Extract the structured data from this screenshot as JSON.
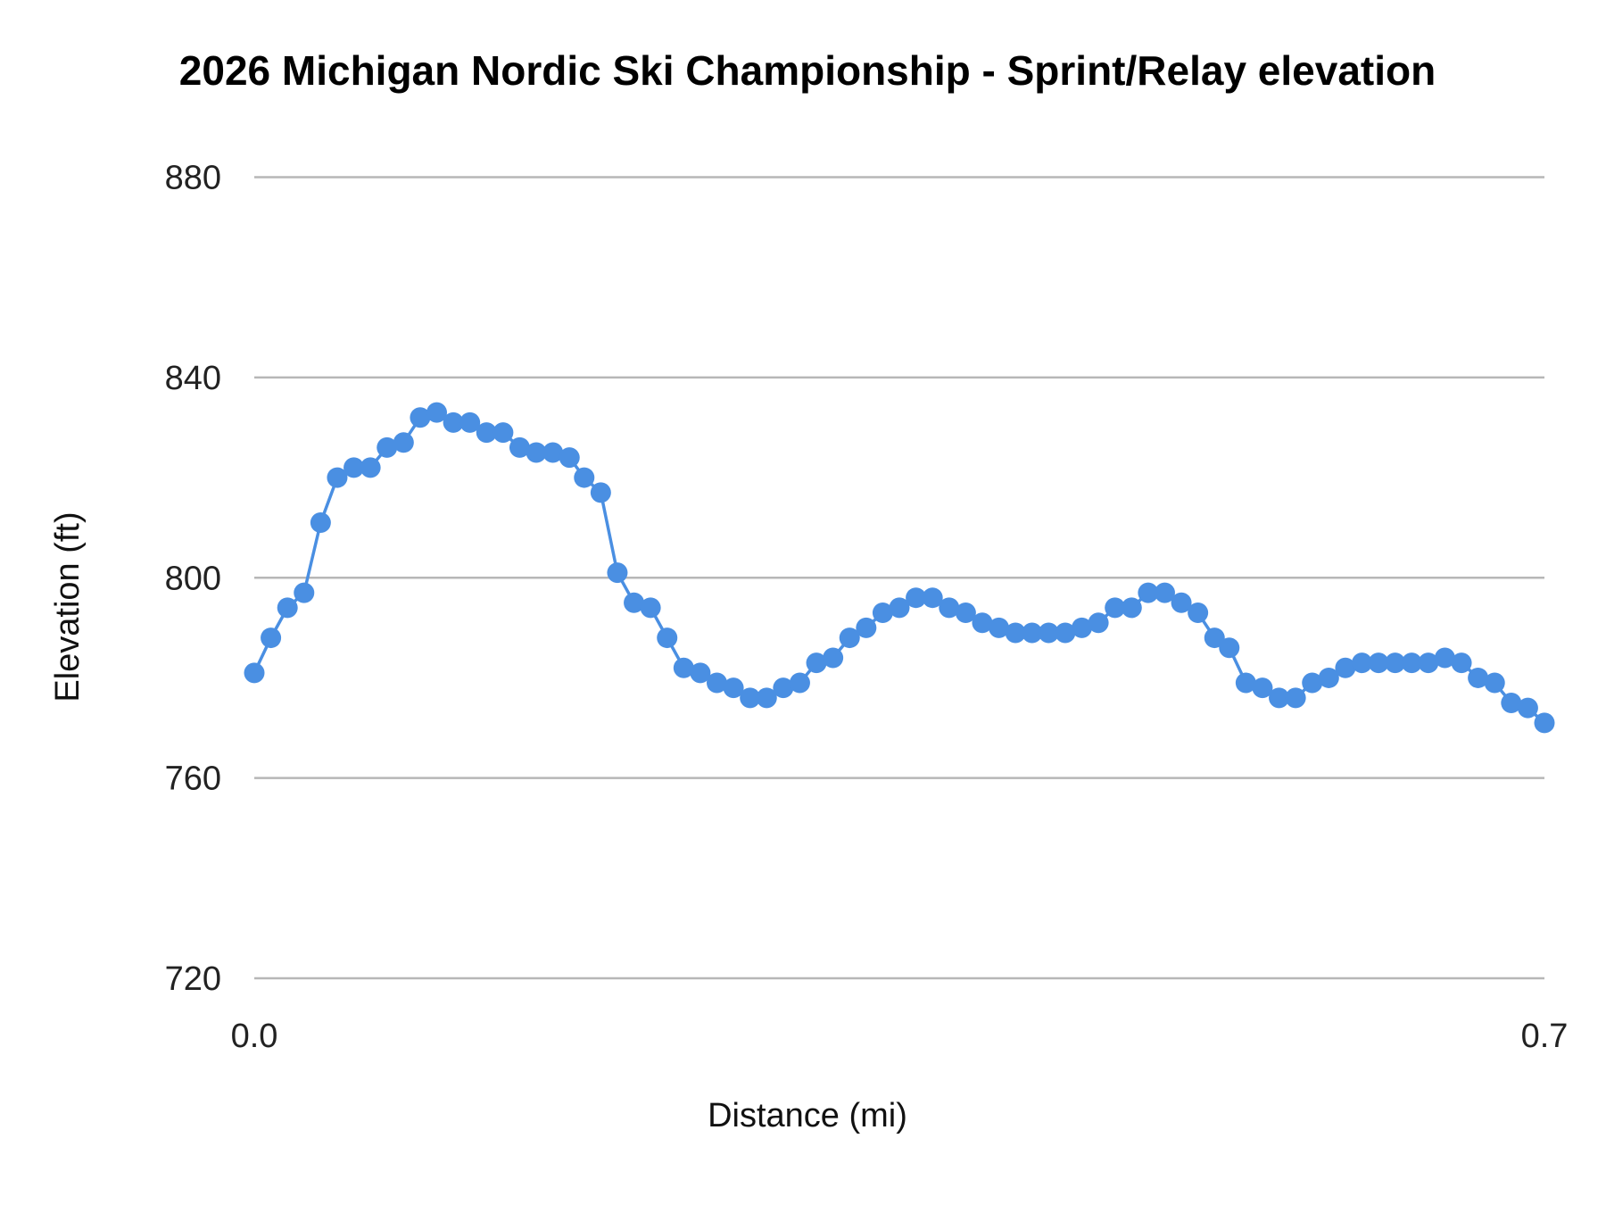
{
  "chart_data": {
    "type": "line",
    "title": "2026 Michigan Nordic Ski Championship  - Sprint/Relay elevation",
    "xlabel": "Distance (mi)",
    "ylabel": "Elevation (ft)",
    "xlim": [
      0.0,
      0.7
    ],
    "ylim": [
      720,
      880
    ],
    "x_ticks": [
      "0.0",
      "0.7"
    ],
    "y_ticks": [
      "720",
      "760",
      "800",
      "840",
      "880"
    ],
    "grid": "horizontal",
    "markers": true,
    "color": "#4a8fe2",
    "x": [
      0.0,
      0.009,
      0.018,
      0.027,
      0.036,
      0.045,
      0.054,
      0.063,
      0.072,
      0.081,
      0.09,
      0.099,
      0.108,
      0.117,
      0.126,
      0.135,
      0.144,
      0.153,
      0.162,
      0.171,
      0.179,
      0.188,
      0.197,
      0.206,
      0.215,
      0.224,
      0.233,
      0.242,
      0.251,
      0.26,
      0.269,
      0.278,
      0.287,
      0.296,
      0.305,
      0.314,
      0.323,
      0.332,
      0.341,
      0.35,
      0.359,
      0.368,
      0.377,
      0.386,
      0.395,
      0.404,
      0.413,
      0.422,
      0.431,
      0.44,
      0.449,
      0.458,
      0.467,
      0.476,
      0.485,
      0.494,
      0.503,
      0.512,
      0.521,
      0.529,
      0.538,
      0.547,
      0.556,
      0.565,
      0.574,
      0.583,
      0.592,
      0.601,
      0.61,
      0.619,
      0.628,
      0.637,
      0.646,
      0.655,
      0.664,
      0.673,
      0.682,
      0.691,
      0.7
    ],
    "values": [
      781,
      788,
      794,
      797,
      811,
      820,
      822,
      822,
      826,
      827,
      832,
      833,
      831,
      831,
      829,
      829,
      826,
      825,
      825,
      824,
      820,
      817,
      801,
      795,
      794,
      788,
      782,
      781,
      779,
      778,
      776,
      776,
      778,
      779,
      783,
      784,
      788,
      790,
      793,
      794,
      796,
      796,
      794,
      793,
      791,
      790,
      789,
      789,
      789,
      789,
      790,
      791,
      794,
      794,
      797,
      797,
      795,
      793,
      788,
      786,
      779,
      778,
      776,
      776,
      779,
      780,
      782,
      783,
      783,
      783,
      783,
      783,
      784,
      783,
      780,
      779,
      775,
      774,
      771
    ]
  }
}
